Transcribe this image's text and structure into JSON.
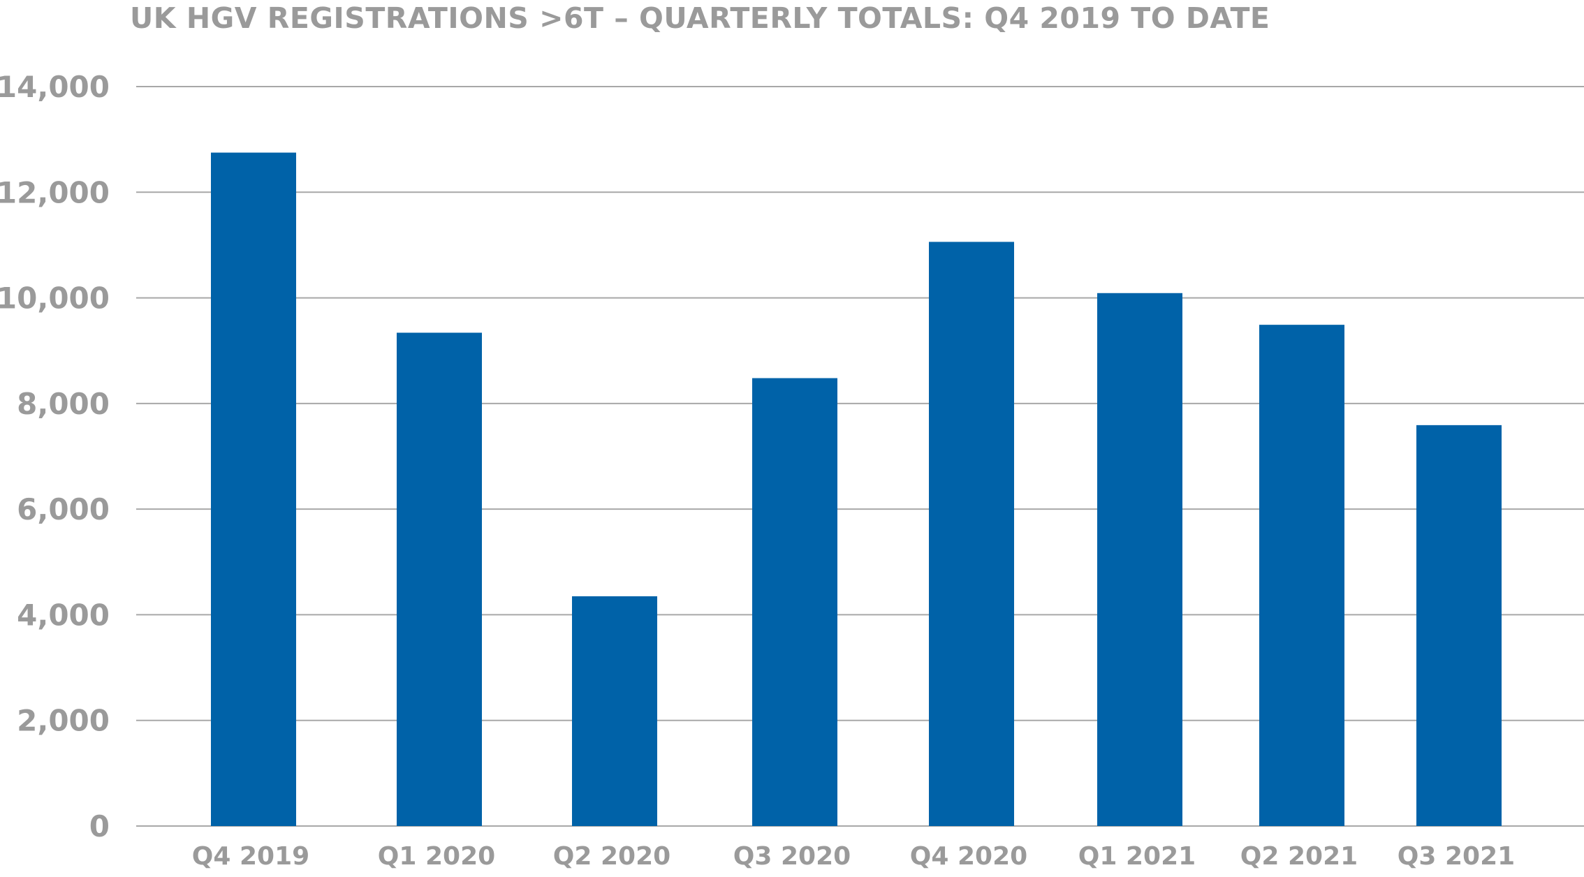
{
  "chart_data": {
    "type": "bar",
    "title": "UK HGV REGISTRATIONS >6T – QUARTERLY TOTALS: Q4 2019 TO DATE",
    "xlabel": "",
    "ylabel": "",
    "categories": [
      "Q4 2019",
      "Q1 2020",
      "Q2 2020",
      "Q3 2020",
      "Q4 2020",
      "Q1 2021",
      "Q2 2021",
      "Q3 2021"
    ],
    "values": [
      12750,
      9340,
      4350,
      8480,
      11060,
      10090,
      9490,
      7590
    ],
    "ylim": [
      0,
      14000
    ],
    "yticks": [
      0,
      2000,
      4000,
      6000,
      8000,
      10000,
      12000,
      14000
    ],
    "ytick_labels": [
      "0",
      "2,000",
      "4,000",
      "6,000",
      "8,000",
      "10,000",
      "12,000",
      "14,000"
    ],
    "grid": true,
    "legend": "none",
    "bar_color": "#0062a8",
    "grid_color": "#a8a8a8",
    "text_color": "#9a9a9a"
  }
}
